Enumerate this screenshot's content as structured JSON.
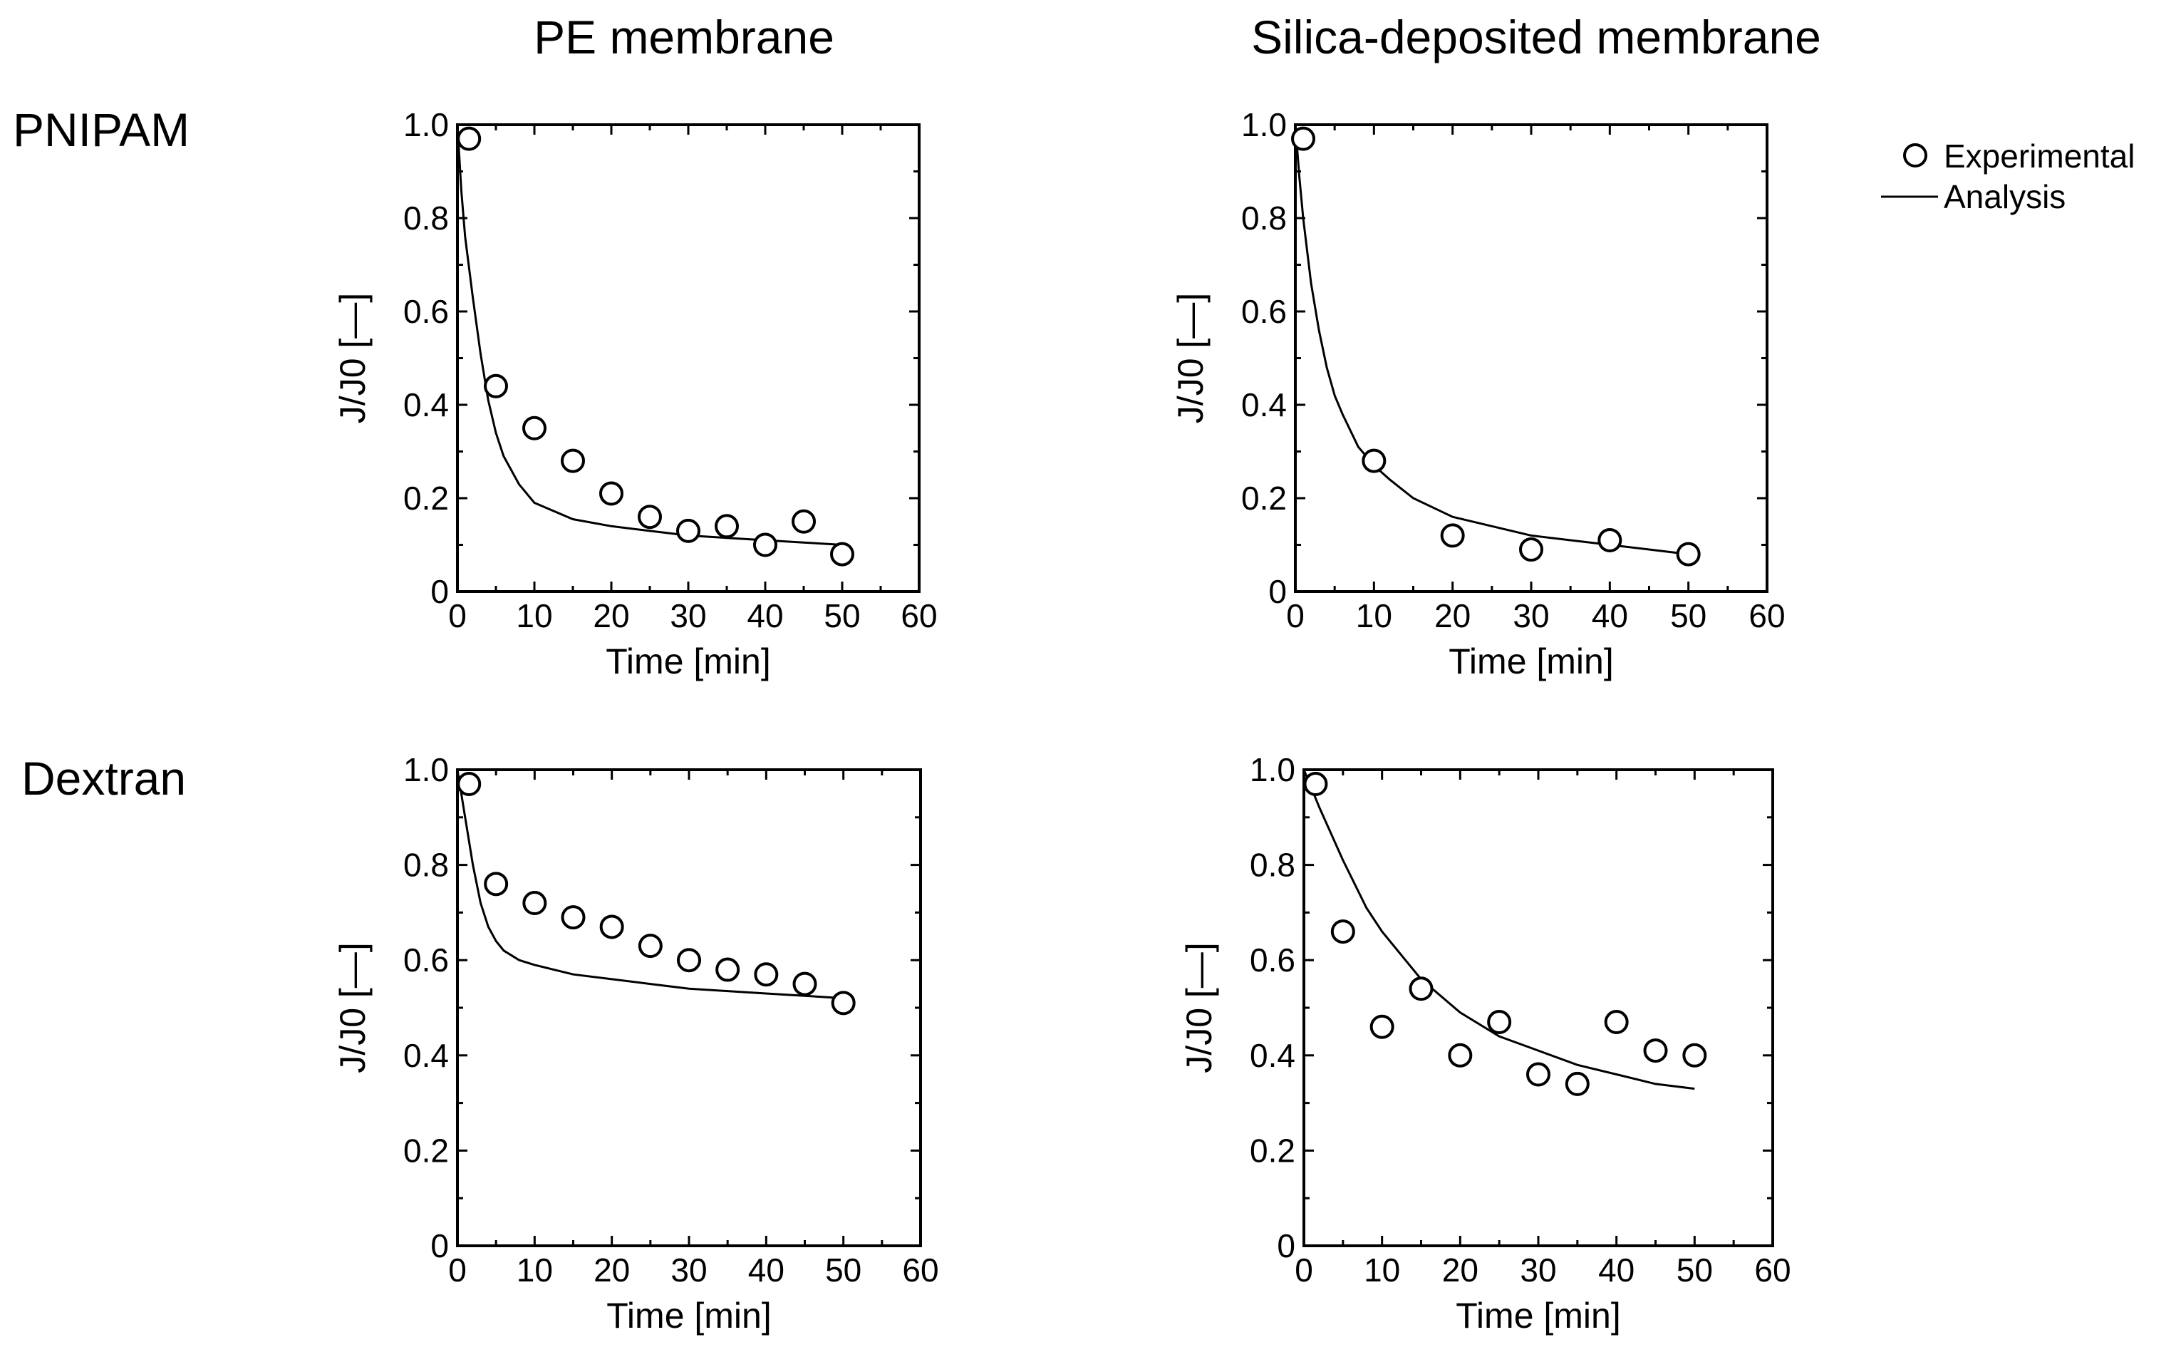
{
  "column_titles": [
    "PE membrane",
    "Silica-deposited membrane"
  ],
  "row_labels": [
    "PNIPAM",
    "Dextran"
  ],
  "legend": {
    "experimental": "Experimental",
    "analysis": "Analysis"
  },
  "chart_data": [
    {
      "id": "pnipam-pe",
      "type": "scatter",
      "row": "PNIPAM",
      "column": "PE membrane",
      "xlabel": "Time [min]",
      "ylabel": "J/J0 [—]",
      "xlim": [
        0,
        60
      ],
      "ylim": [
        0,
        1.0
      ],
      "xticks": [
        "0",
        "10",
        "20",
        "30",
        "40",
        "50",
        "60"
      ],
      "yticks": [
        "0",
        "0.2",
        "0.4",
        "0.6",
        "0.8",
        "1.0"
      ],
      "series": [
        {
          "name": "Experimental",
          "kind": "markers",
          "x": [
            1.5,
            5,
            10,
            15,
            20,
            25,
            30,
            35,
            40,
            45,
            50
          ],
          "y": [
            0.97,
            0.44,
            0.35,
            0.28,
            0.21,
            0.16,
            0.13,
            0.14,
            0.1,
            0.15,
            0.08
          ]
        },
        {
          "name": "Analysis",
          "kind": "line",
          "x": [
            0,
            0.5,
            1,
            2,
            3,
            4,
            5,
            6,
            8,
            10,
            15,
            20,
            25,
            30,
            35,
            40,
            45,
            50
          ],
          "y": [
            1.0,
            0.86,
            0.76,
            0.63,
            0.51,
            0.41,
            0.34,
            0.29,
            0.23,
            0.19,
            0.155,
            0.14,
            0.13,
            0.12,
            0.115,
            0.11,
            0.105,
            0.1
          ]
        }
      ]
    },
    {
      "id": "pnipam-silica",
      "type": "scatter",
      "row": "PNIPAM",
      "column": "Silica-deposited membrane",
      "xlabel": "Time [min]",
      "ylabel": "J/J0 [—]",
      "xlim": [
        0,
        60
      ],
      "ylim": [
        0,
        1.0
      ],
      "xticks": [
        "0",
        "10",
        "20",
        "30",
        "40",
        "50",
        "60"
      ],
      "yticks": [
        "0",
        "0.2",
        "0.4",
        "0.6",
        "0.8",
        "1.0"
      ],
      "series": [
        {
          "name": "Experimental",
          "kind": "markers",
          "x": [
            1,
            10,
            20,
            30,
            40,
            50
          ],
          "y": [
            0.97,
            0.28,
            0.12,
            0.09,
            0.11,
            0.08
          ]
        },
        {
          "name": "Analysis",
          "kind": "line",
          "x": [
            0,
            0.5,
            1,
            2,
            3,
            4,
            5,
            6,
            8,
            10,
            12,
            15,
            20,
            25,
            30,
            35,
            40,
            45,
            50
          ],
          "y": [
            1.0,
            0.89,
            0.8,
            0.66,
            0.56,
            0.48,
            0.42,
            0.38,
            0.31,
            0.27,
            0.24,
            0.2,
            0.16,
            0.14,
            0.12,
            0.11,
            0.1,
            0.09,
            0.08
          ]
        }
      ]
    },
    {
      "id": "dextran-pe",
      "type": "scatter",
      "row": "Dextran",
      "column": "PE membrane",
      "xlabel": "Time [min]",
      "ylabel": "J/J0 [—]",
      "xlim": [
        0,
        60
      ],
      "ylim": [
        0,
        1.0
      ],
      "xticks": [
        "0",
        "10",
        "20",
        "30",
        "40",
        "50",
        "60"
      ],
      "yticks": [
        "0",
        "0.2",
        "0.4",
        "0.6",
        "0.8",
        "1.0"
      ],
      "series": [
        {
          "name": "Experimental",
          "kind": "markers",
          "x": [
            1.5,
            5,
            10,
            15,
            20,
            25,
            30,
            35,
            40,
            45,
            50
          ],
          "y": [
            0.97,
            0.76,
            0.72,
            0.69,
            0.67,
            0.63,
            0.6,
            0.58,
            0.57,
            0.55,
            0.51
          ]
        },
        {
          "name": "Analysis",
          "kind": "line",
          "x": [
            0,
            1,
            2,
            3,
            4,
            5,
            6,
            8,
            10,
            15,
            20,
            25,
            30,
            35,
            40,
            45,
            50
          ],
          "y": [
            1.0,
            0.9,
            0.8,
            0.72,
            0.67,
            0.64,
            0.62,
            0.6,
            0.59,
            0.57,
            0.56,
            0.55,
            0.54,
            0.535,
            0.53,
            0.525,
            0.52
          ]
        }
      ]
    },
    {
      "id": "dextran-silica",
      "type": "scatter",
      "row": "Dextran",
      "column": "Silica-deposited membrane",
      "xlabel": "Time [min]",
      "ylabel": "J/J0 [—]",
      "xlim": [
        0,
        60
      ],
      "ylim": [
        0,
        1.0
      ],
      "xticks": [
        "0",
        "10",
        "20",
        "30",
        "40",
        "50",
        "60"
      ],
      "yticks": [
        "0",
        "0.2",
        "0.4",
        "0.6",
        "0.8",
        "1.0"
      ],
      "series": [
        {
          "name": "Experimental",
          "kind": "markers",
          "x": [
            1.5,
            5,
            10,
            15,
            20,
            25,
            30,
            35,
            40,
            45,
            50
          ],
          "y": [
            0.97,
            0.66,
            0.46,
            0.54,
            0.4,
            0.47,
            0.36,
            0.34,
            0.47,
            0.41,
            0.4
          ]
        },
        {
          "name": "Analysis",
          "kind": "line",
          "x": [
            0,
            2,
            5,
            8,
            10,
            15,
            20,
            25,
            30,
            35,
            40,
            45,
            50
          ],
          "y": [
            1.0,
            0.92,
            0.81,
            0.71,
            0.66,
            0.56,
            0.49,
            0.44,
            0.41,
            0.38,
            0.36,
            0.34,
            0.33
          ]
        }
      ]
    }
  ]
}
